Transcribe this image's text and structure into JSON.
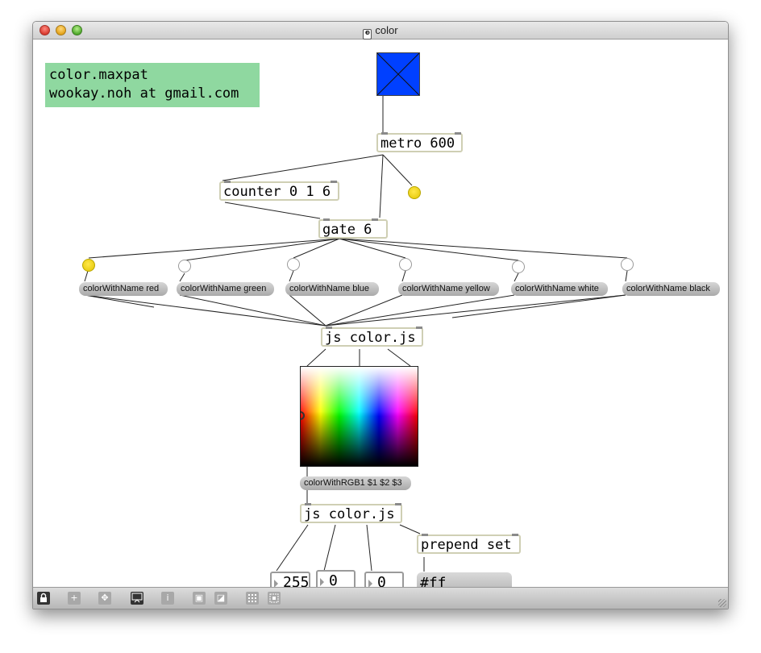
{
  "window": {
    "title": "color"
  },
  "comment": {
    "line1": "color.maxpat",
    "line2": "wookay.noh at gmail.com"
  },
  "objects": {
    "metro": "metro 600",
    "counter": "counter 0 1 6",
    "gate": "gate 6",
    "js_top": "js color.js",
    "js_bottom": "js color.js",
    "prepend": "prepend set"
  },
  "messages": {
    "red": "colorWithName red",
    "green": "colorWithName green",
    "blue": "colorWithName blue",
    "yellow": "colorWithName yellow",
    "white": "colorWithName white",
    "black": "colorWithName black",
    "rgb": "colorWithRGB1 $1 $2 $3",
    "hex": "#ff"
  },
  "numbers": {
    "r": "255",
    "g": "0",
    "b": "0"
  },
  "toggles": {
    "metro_indicator": true,
    "red": true,
    "green": false,
    "blue": false,
    "yellow": false,
    "white": false,
    "black": false
  },
  "colors": {
    "bang_fill": "#0040ff",
    "comment_bg": "#8fd8a0",
    "toggle_on": "#f0d400",
    "object_border": "#cfcfb4"
  },
  "toolbar": {
    "icons": [
      "lock-icon",
      "add-object-icon",
      "move-icon",
      "presentation-icon",
      "inspector-icon",
      "front-icon",
      "back-icon",
      "grid-icon",
      "snap-icon"
    ]
  }
}
